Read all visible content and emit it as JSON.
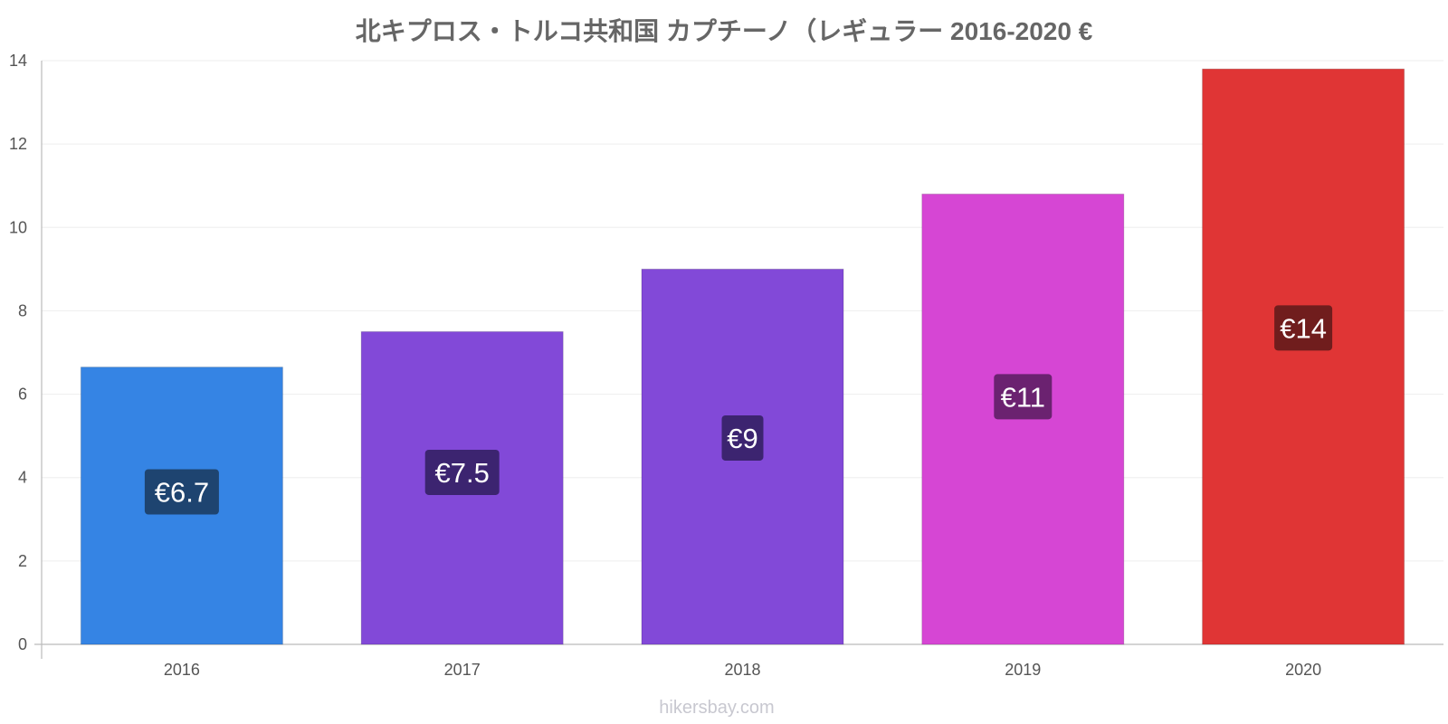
{
  "chart_data": {
    "type": "bar",
    "title": "北キプロス・トルコ共和国 カプチーノ（レギュラー 2016-2020 €",
    "categories": [
      "2016",
      "2017",
      "2018",
      "2019",
      "2020"
    ],
    "values": [
      6.65,
      7.5,
      9.0,
      10.8,
      13.8
    ],
    "data_labels": [
      "€6.7",
      "€7.5",
      "€9",
      "€11",
      "€14"
    ],
    "ylim": [
      0,
      14
    ],
    "yticks": [
      "0",
      "2",
      "4",
      "6",
      "8",
      "10",
      "12",
      "14"
    ],
    "xlabel": "",
    "ylabel": "",
    "grid": true,
    "bar_colors": [
      "#3584e4",
      "#8249d8",
      "#8249d8",
      "#d646d4",
      "#e03535"
    ],
    "label_bg_colors": [
      "#1e4470",
      "#3c2470",
      "#3c2470",
      "#6b2270",
      "#701d1d"
    ]
  },
  "watermark": "hikersbay.com"
}
